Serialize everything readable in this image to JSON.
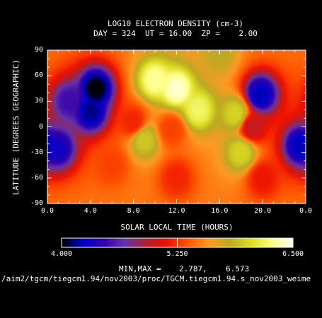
{
  "chart_data": {
    "type": "heatmap",
    "title": "LOG10 ELECTRON DENSITY (cm-3)",
    "subtitle": "DAY = 324  UT = 16.00  ZP =    2.00",
    "xlabel": "SOLAR LOCAL TIME (HOURS)",
    "ylabel": "LATITUDE (DEGREES GEOGRAPHIC)",
    "xlim": [
      0,
      24
    ],
    "ylim": [
      -90,
      90
    ],
    "x_ticks": [
      "0.0",
      "4.0",
      "8.0",
      "12.0",
      "16.0",
      "20.0",
      "0.0"
    ],
    "y_ticks": [
      "90",
      "60",
      "30",
      "0",
      "-30",
      "-60",
      "-90"
    ],
    "colorbar": {
      "min": 4.0,
      "max": 6.5,
      "labels": [
        "4.000",
        "5.250",
        "6.500"
      ],
      "colors": [
        "#000000",
        "#0000cc",
        "#3300aa",
        "#6633aa",
        "#aa2233",
        "#ee1100",
        "#ff5500",
        "#ff9922",
        "#bbaa22",
        "#dddd22",
        "#ffff88",
        "#ffffff"
      ]
    },
    "min_max_label": "MIN,MAX =",
    "min_value": "2.787,",
    "max_value": "6.573",
    "approx_extrema": {
      "min": 2.787,
      "max": 6.573
    },
    "features": [
      {
        "x": 4.5,
        "y": 45,
        "value": 4.0,
        "desc": "minimum"
      },
      {
        "x": 4.0,
        "y": 18,
        "value": 4.15
      },
      {
        "x": 2.0,
        "y": 30,
        "value": 4.5
      },
      {
        "x": 1.0,
        "y": -25,
        "value": 4.3
      },
      {
        "x": 23.5,
        "y": -22,
        "value": 4.2
      },
      {
        "x": 19.8,
        "y": 38,
        "value": 4.2
      },
      {
        "x": 12.0,
        "y": 45,
        "value": 6.4,
        "desc": "maximum"
      },
      {
        "x": 10.0,
        "y": 55,
        "value": 6.3
      },
      {
        "x": 14.0,
        "y": 20,
        "value": 6.2
      },
      {
        "x": 17.5,
        "y": 15,
        "value": 6.0
      },
      {
        "x": 16.0,
        "y": 85,
        "value": 5.8
      },
      {
        "x": 18.0,
        "y": -30,
        "value": 6.0
      },
      {
        "x": 9.0,
        "y": -15,
        "value": 5.95
      },
      {
        "x": 8.0,
        "y": 5,
        "value": 5.2
      },
      {
        "x": 11.5,
        "y": -3,
        "value": 5.3
      },
      {
        "x": 19.0,
        "y": 0,
        "value": 5.0
      },
      {
        "x": 6.0,
        "y": -45,
        "value": 5.3
      },
      {
        "x": 12.0,
        "y": -60,
        "value": 5.2
      },
      {
        "x": 20.0,
        "y": -60,
        "value": 5.15
      }
    ],
    "background_value": 5.5,
    "grid": false
  },
  "footer_path": "/aim2/tgcm/tiegcm1.94/nov2003/proc/TGCM.tiegcm1.94.s_nov2003_weime"
}
